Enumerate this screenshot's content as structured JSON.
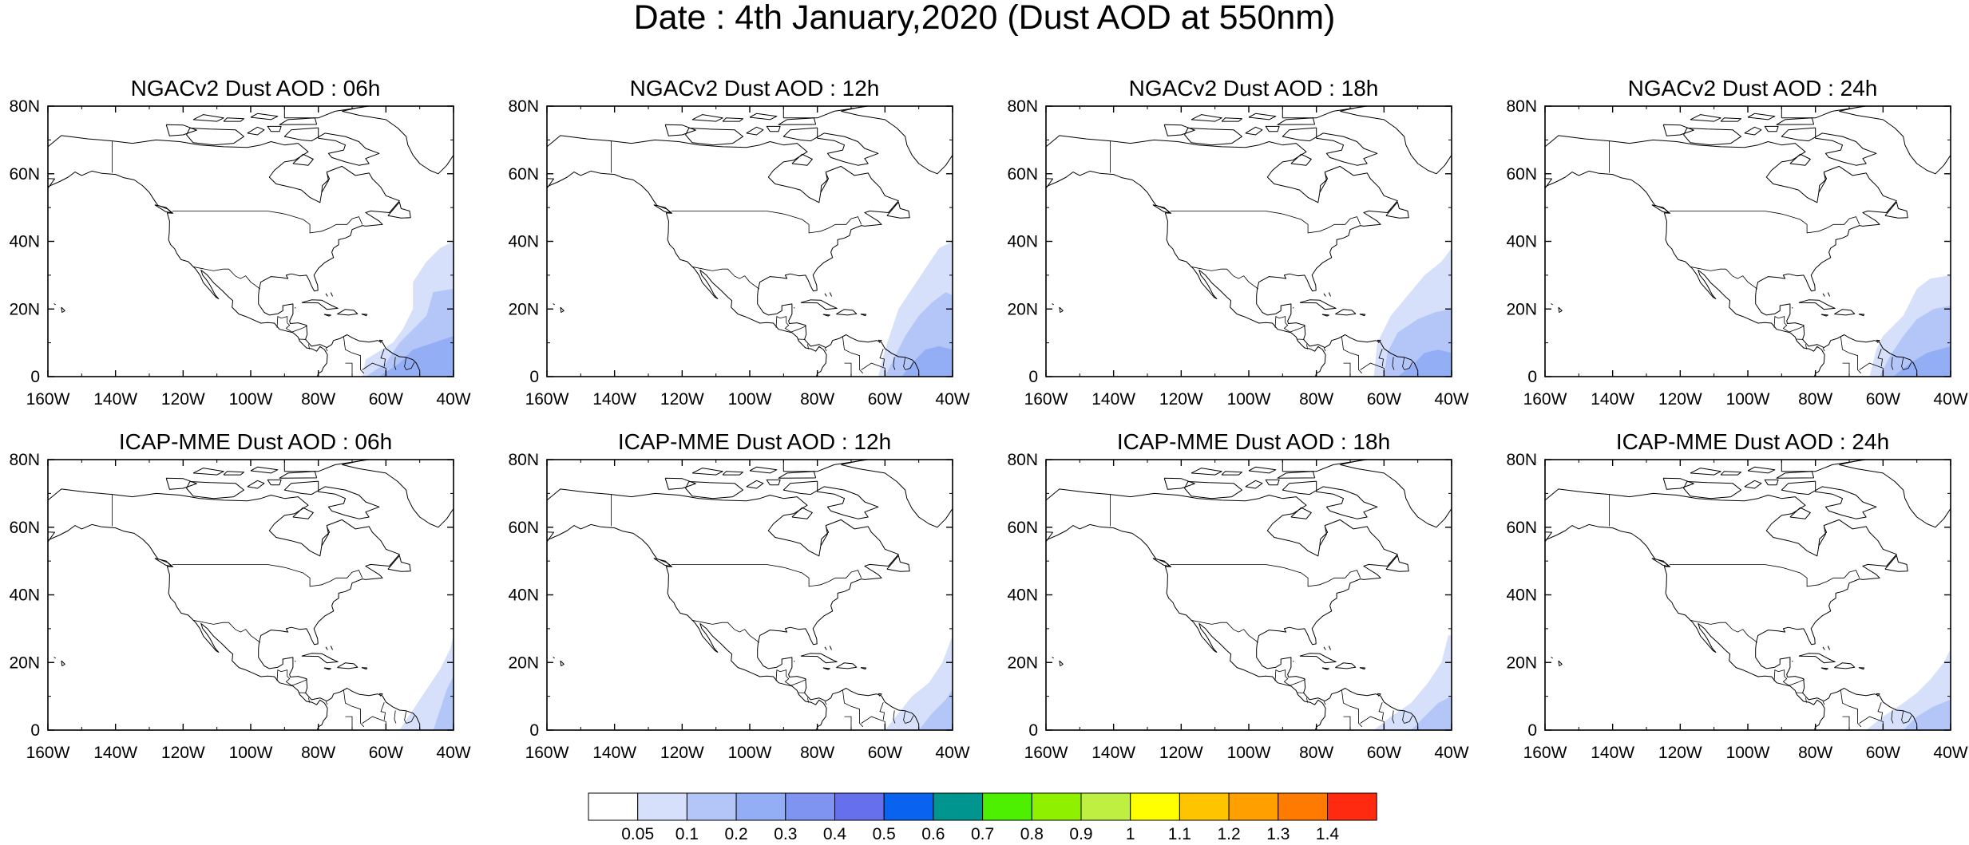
{
  "figure": {
    "title": "Date : 4th January,2020 (Dust AOD at 550nm)"
  },
  "axes": {
    "lon_ticks": [
      "160W",
      "140W",
      "120W",
      "100W",
      "80W",
      "60W",
      "40W"
    ],
    "lon_values": [
      -160,
      -140,
      -120,
      -100,
      -80,
      -60,
      -40
    ],
    "lat_ticks": [
      "0",
      "20N",
      "40N",
      "60N",
      "80N"
    ],
    "lat_values": [
      0,
      20,
      40,
      60,
      80
    ],
    "lon_range": [
      -160,
      -40
    ],
    "lat_range": [
      0,
      80
    ]
  },
  "panels": [
    {
      "title": "NGACv2 Dust AOD : 06h",
      "model": "NGACv2",
      "hour": "06h"
    },
    {
      "title": "NGACv2 Dust AOD : 12h",
      "model": "NGACv2",
      "hour": "12h"
    },
    {
      "title": "NGACv2 Dust AOD : 18h",
      "model": "NGACv2",
      "hour": "18h"
    },
    {
      "title": "NGACv2 Dust AOD : 24h",
      "model": "NGACv2",
      "hour": "24h"
    },
    {
      "title": "ICAP-MME Dust AOD : 06h",
      "model": "ICAP-MME",
      "hour": "06h"
    },
    {
      "title": "ICAP-MME Dust AOD : 12h",
      "model": "ICAP-MME",
      "hour": "12h"
    },
    {
      "title": "ICAP-MME Dust AOD : 18h",
      "model": "ICAP-MME",
      "hour": "18h"
    },
    {
      "title": "ICAP-MME Dust AOD : 24h",
      "model": "ICAP-MME",
      "hour": "24h"
    }
  ],
  "colorbar": {
    "labels": [
      "0.05",
      "0.1",
      "0.2",
      "0.3",
      "0.4",
      "0.5",
      "0.6",
      "0.7",
      "0.8",
      "0.9",
      "1",
      "1.1",
      "1.2",
      "1.3",
      "1.4"
    ],
    "colors": [
      "#ffffff",
      "#d6e0fb",
      "#b3c6f7",
      "#94aef5",
      "#7e94f0",
      "#6670ed",
      "#0a63ee",
      "#00968f",
      "#4cf000",
      "#8ff000",
      "#bff041",
      "#ffff00",
      "#ffc400",
      "#ffa000",
      "#ff7a00",
      "#ff2a10"
    ]
  },
  "colors": {
    "coastline": "#000000",
    "frame": "#000000",
    "dust_light": "#d6e0fb",
    "dust_medium": "#b3c6f7",
    "dust_strong": "#94aef5"
  }
}
